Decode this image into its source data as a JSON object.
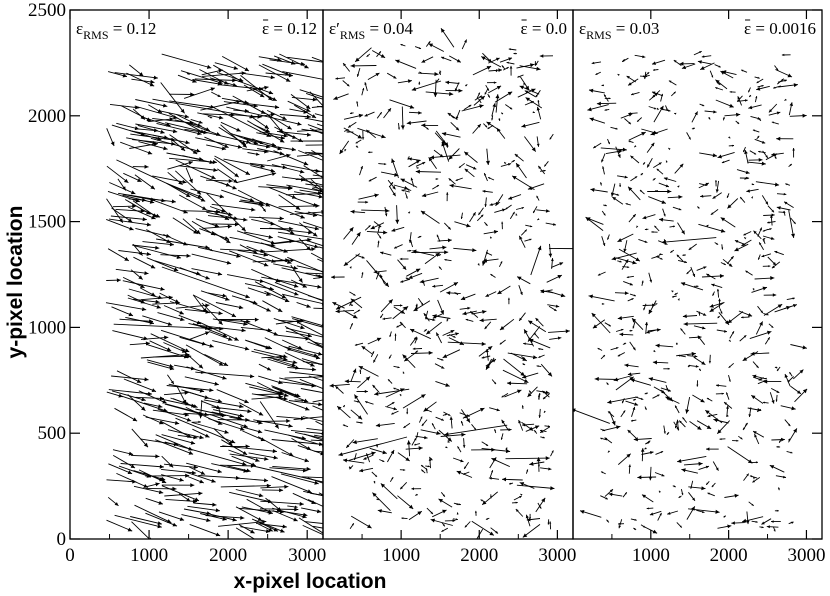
{
  "chart_data": {
    "type": "scatter",
    "subtype": "vector-field",
    "xlabel": "x-pixel location",
    "ylabel": "y-pixel location",
    "ylim": [
      0,
      2500
    ],
    "yticks": [
      0,
      500,
      1000,
      1500,
      2000,
      2500
    ],
    "ytick_labels": [
      "0",
      "500",
      "1000",
      "1500",
      "2000",
      "2500"
    ],
    "grid": false,
    "legend": "none",
    "colors": {
      "arrows": "#000000",
      "frame": "#000000",
      "background": "#ffffff"
    },
    "panels": [
      {
        "xlim": [
          0,
          3200
        ],
        "xticks": [
          0,
          1000,
          2000,
          3000
        ],
        "xtick_labels": [
          "0",
          "1000",
          "2000",
          "3000"
        ],
        "stats": {
          "left_symbol": "ε",
          "left_subscript": "RMS",
          "left_value": "= 0.12",
          "right_symbol": "ε",
          "right_value": "= 0.12"
        },
        "field": {
          "x_range": [
            450,
            3150
          ],
          "y_range": [
            50,
            2300
          ],
          "mean_dx": 370,
          "mean_dy": -100,
          "scatter": 120,
          "count": 620
        }
      },
      {
        "xlim": [
          0,
          3200
        ],
        "xticks": [
          1000,
          2000,
          3000
        ],
        "xtick_labels": [
          "1000",
          "2000",
          "3000"
        ],
        "stats": {
          "left_symbol": "ε′",
          "left_subscript": "RMS",
          "left_value": "= 0.04",
          "right_symbol": "ε",
          "right_value": "= 0.0"
        },
        "field": {
          "x_range": [
            250,
            2950
          ],
          "y_range": [
            40,
            2330
          ],
          "mean_dx": 0,
          "mean_dy": 0,
          "scatter": 150,
          "count": 560
        }
      },
      {
        "xlim": [
          0,
          3200
        ],
        "xticks": [
          1000,
          2000,
          3000
        ],
        "xtick_labels": [
          "1000",
          "2000",
          "3000"
        ],
        "stats": {
          "left_symbol": "ε",
          "left_subscript": "RMS",
          "left_value": "= 0.03",
          "right_symbol": "ε",
          "right_value": "= 0.0016"
        },
        "field": {
          "x_range": [
            350,
            2850
          ],
          "y_range": [
            40,
            2290
          ],
          "mean_dx": 0,
          "mean_dy": 0,
          "scatter": 120,
          "count": 520
        }
      }
    ]
  }
}
